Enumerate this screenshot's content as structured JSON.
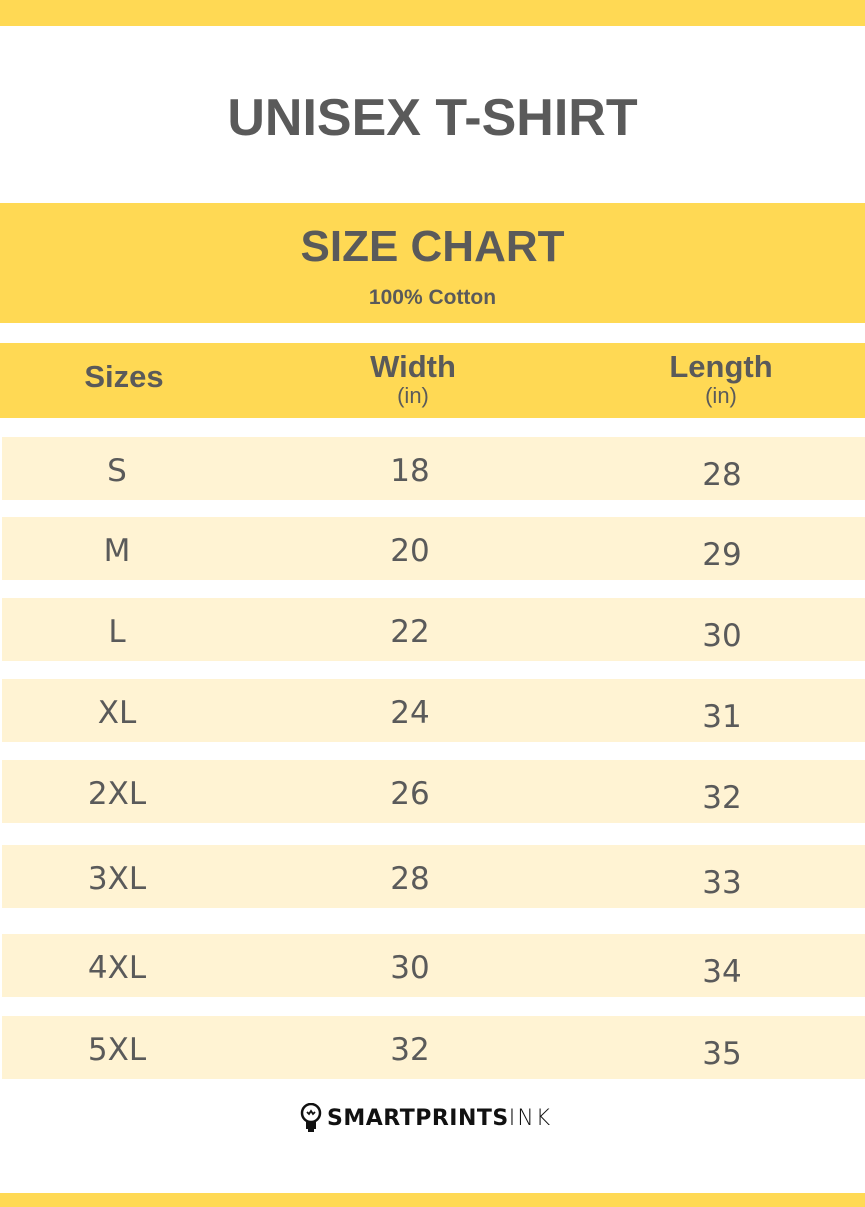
{
  "title": "UNISEX T-SHIRT",
  "banner": {
    "title": "SIZE CHART",
    "subtitle": "100% Cotton"
  },
  "header": {
    "sizes": "Sizes",
    "width": "Width",
    "width_unit": "(in)",
    "length": "Length",
    "length_unit": "(in)"
  },
  "rows": [
    {
      "size": "S",
      "width": "18",
      "length": "28"
    },
    {
      "size": "M",
      "width": "20",
      "length": "29"
    },
    {
      "size": "L",
      "width": "22",
      "length": "30"
    },
    {
      "size": "XL",
      "width": "24",
      "length": "31"
    },
    {
      "size": "2XL",
      "width": "26",
      "length": "32"
    },
    {
      "size": "3XL",
      "width": "28",
      "length": "33"
    },
    {
      "size": "4XL",
      "width": "30",
      "length": "34"
    },
    {
      "size": "5XL",
      "width": "32",
      "length": "35"
    }
  ],
  "logo": {
    "bold": "SMARTPRINTS",
    "light": "INK",
    "icon": "lightbulb-icon"
  },
  "colors": {
    "accent": "#ffd954",
    "row": "#fff3d3",
    "text": "#5a5a5a"
  }
}
